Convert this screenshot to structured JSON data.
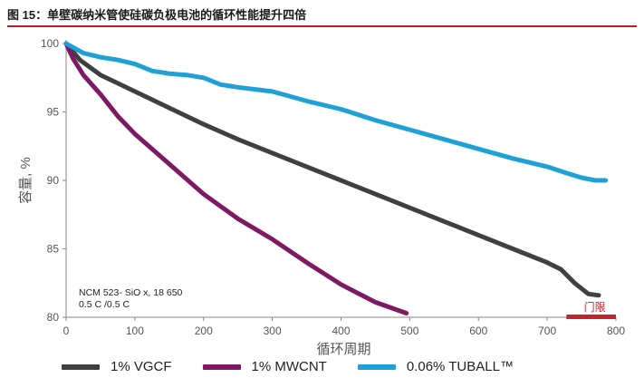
{
  "figure_title": "图 15：单壁碳纳米管使硅碳负极电池的循环性能提升四倍",
  "chart_data": {
    "type": "line",
    "xlabel": "循环周期",
    "ylabel": "容量, %",
    "xlim": [
      0,
      800
    ],
    "ylim": [
      80,
      100
    ],
    "xticks": [
      0,
      100,
      200,
      300,
      400,
      500,
      600,
      700,
      800
    ],
    "yticks": [
      80,
      85,
      90,
      95,
      100
    ],
    "grid": false,
    "legend_position": "bottom",
    "annotations": {
      "note_line1": "NCM 523-  SiO x, 18 650",
      "note_line2": "0.5 C /0.5 C",
      "limit_label": "门限",
      "limit_value": 80,
      "limit_x_range": [
        728,
        800
      ]
    },
    "series": [
      {
        "name": "1% VGCF",
        "color": "#404040",
        "x": [
          0,
          20,
          50,
          100,
          150,
          200,
          250,
          300,
          350,
          400,
          450,
          500,
          550,
          600,
          650,
          700,
          720,
          740,
          760,
          775
        ],
        "y": [
          100,
          98.8,
          97.7,
          96.5,
          95.3,
          94.1,
          93.0,
          92.0,
          91.0,
          90.0,
          89.0,
          88.0,
          87.0,
          86.0,
          85.0,
          84.0,
          83.5,
          82.5,
          81.7,
          81.6
        ]
      },
      {
        "name": "1% MWCNT",
        "color": "#7d1a63",
        "x": [
          0,
          10,
          25,
          50,
          75,
          100,
          150,
          200,
          250,
          300,
          350,
          400,
          450,
          495
        ],
        "y": [
          100,
          98.9,
          97.7,
          96.3,
          94.7,
          93.4,
          91.2,
          89.0,
          87.2,
          85.7,
          84.0,
          82.4,
          81.1,
          80.3
        ]
      },
      {
        "name": "0.06% TUBALL™",
        "color": "#1fa0d7",
        "x": [
          0,
          25,
          50,
          75,
          100,
          125,
          150,
          175,
          200,
          225,
          250,
          300,
          350,
          400,
          450,
          500,
          550,
          600,
          650,
          700,
          730,
          750,
          770,
          785
        ],
        "y": [
          100,
          99.3,
          99.0,
          98.8,
          98.5,
          98.0,
          97.8,
          97.7,
          97.5,
          97.0,
          96.8,
          96.5,
          95.8,
          95.2,
          94.4,
          93.7,
          93.0,
          92.3,
          91.6,
          91.0,
          90.5,
          90.2,
          90.0,
          90.0
        ]
      }
    ]
  }
}
